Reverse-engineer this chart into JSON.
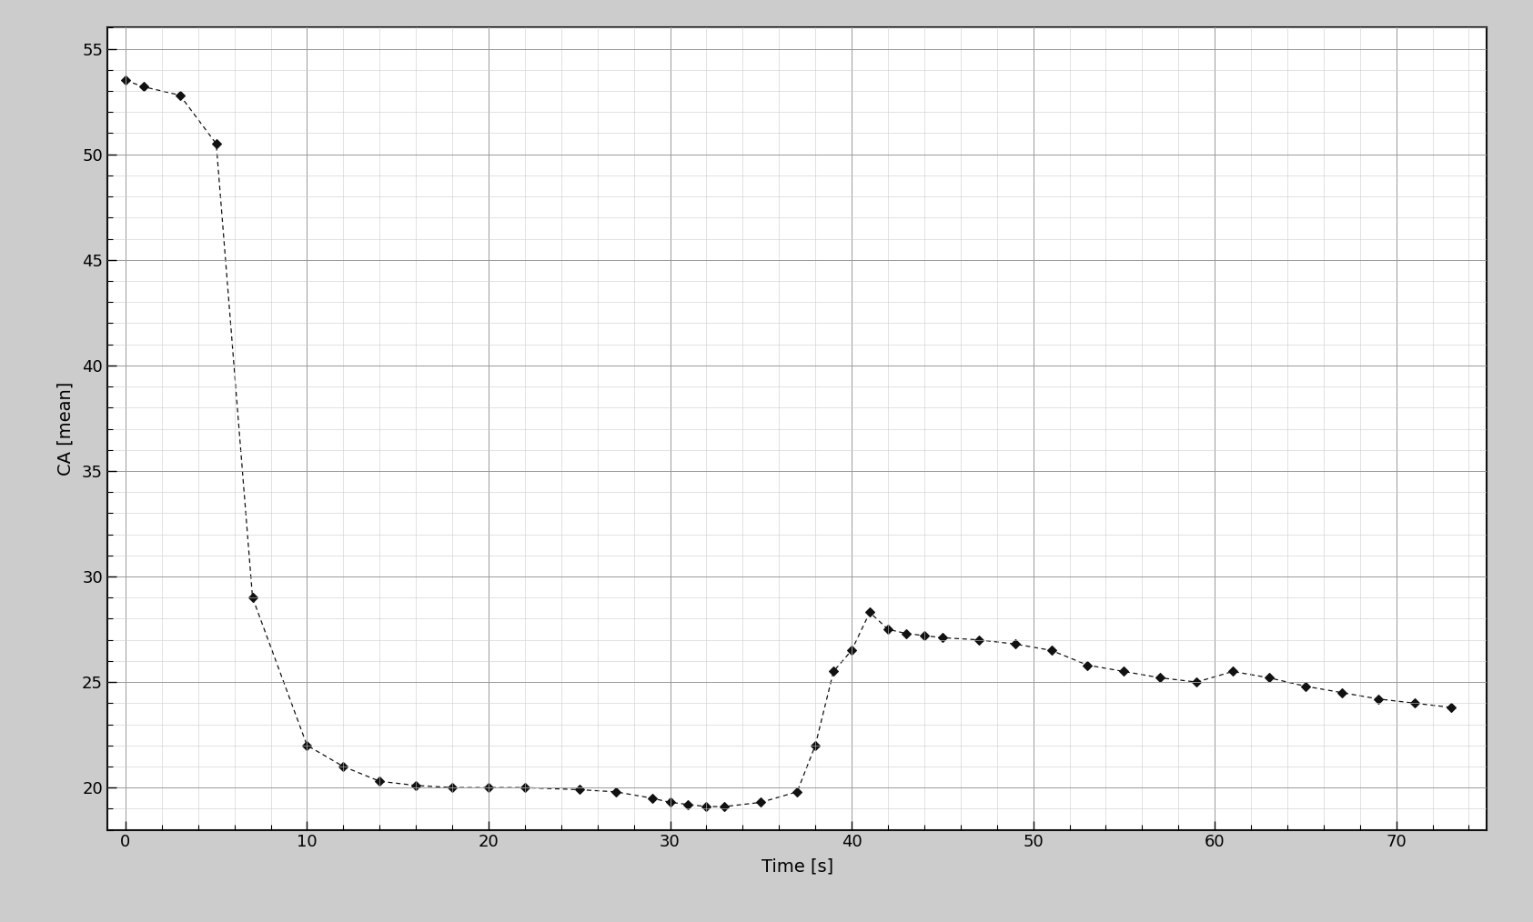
{
  "x": [
    0,
    1,
    3,
    5,
    7,
    10,
    12,
    14,
    16,
    18,
    20,
    22,
    25,
    27,
    29,
    30,
    31,
    32,
    33,
    35,
    37,
    38,
    39,
    40,
    41,
    42,
    43,
    44,
    45,
    47,
    49,
    51,
    53,
    55,
    57,
    59,
    61,
    63,
    65,
    67,
    69,
    71,
    73
  ],
  "y": [
    53.5,
    53.2,
    52.8,
    50.5,
    29.0,
    22.0,
    21.0,
    20.3,
    20.1,
    20.0,
    20.0,
    20.0,
    19.9,
    19.8,
    19.5,
    19.3,
    19.2,
    19.1,
    19.1,
    19.3,
    19.8,
    22.0,
    25.5,
    26.5,
    28.3,
    27.5,
    27.3,
    27.2,
    27.1,
    27.0,
    26.8,
    26.5,
    25.8,
    25.5,
    25.2,
    25.0,
    25.5,
    25.2,
    24.8,
    24.5,
    24.2,
    24.0,
    23.8
  ],
  "title": "",
  "xlabel": "Time [s]",
  "ylabel": "CA [mean]",
  "xlim": [
    -1,
    75
  ],
  "ylim": [
    18,
    56
  ],
  "xticks": [
    0,
    10,
    20,
    30,
    40,
    50,
    60,
    70
  ],
  "yticks": [
    20,
    25,
    30,
    35,
    40,
    45,
    50,
    55
  ],
  "line_color": "#111111",
  "marker_color": "#111111",
  "marker": "D",
  "marker_size": 5,
  "line_width": 0.9,
  "major_grid_color": "#999999",
  "minor_grid_color": "#cccccc",
  "bg_color": "#ffffff",
  "fig_bg_color": "#cccccc",
  "spine_color": "#111111",
  "tick_label_size": 13,
  "xlabel_size": 14,
  "ylabel_size": 14
}
